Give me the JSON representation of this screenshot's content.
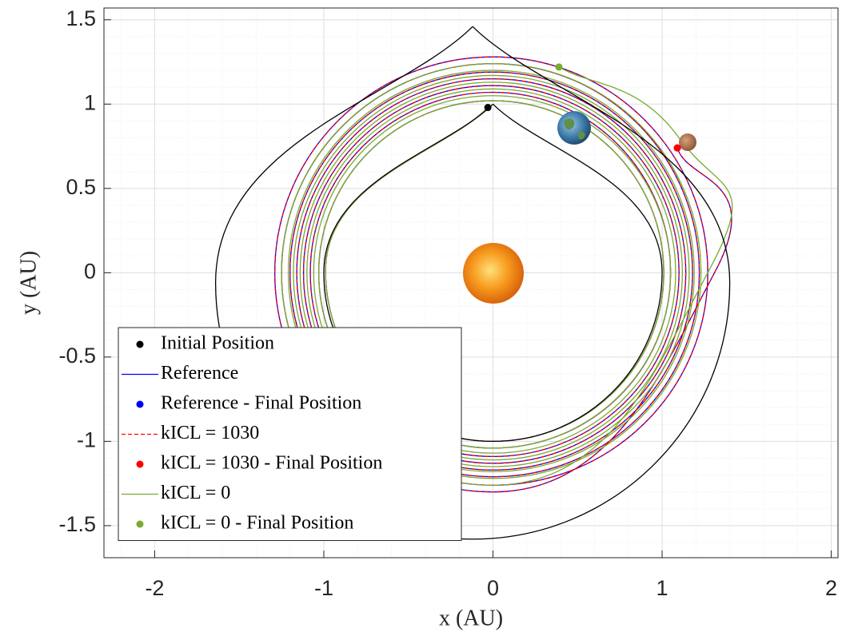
{
  "chart_data": {
    "type": "line",
    "x_label": "x (AU)",
    "y_label": "y (AU)",
    "xlim": [
      -2.3,
      2.04
    ],
    "ylim": [
      -1.69,
      1.57
    ],
    "xticks": [
      -2,
      -1,
      0,
      1,
      2
    ],
    "yticks": [
      -1.5,
      -1,
      -0.5,
      0,
      0.5,
      1,
      1.5
    ],
    "grid": true,
    "minor_grid": true,
    "legend": "lower left",
    "series": [
      {
        "name": "Initial Position",
        "mode": "markers",
        "color": "#000000",
        "x": [
          -0.03
        ],
        "values": [
          0.98
        ]
      },
      {
        "name": "Reference",
        "mode": "line",
        "color": "#0000ff",
        "line_style": "solid",
        "x": [
          -0.03,
          -0.99,
          0,
          1.01,
          0,
          -1.03,
          0,
          1.05,
          0,
          -1.08,
          0,
          1.1,
          0,
          -1.12,
          0,
          1.14,
          0,
          -1.16,
          0,
          1.18,
          0,
          -1.2,
          0,
          1.22,
          0,
          -1.25,
          0,
          1.27,
          0,
          -1.29,
          0,
          1.31,
          1.09
        ],
        "values": [
          0.98,
          0,
          -1.0,
          0,
          1.02,
          0,
          -1.04,
          0,
          1.07,
          0,
          -1.09,
          0,
          1.11,
          0,
          -1.13,
          0,
          1.15,
          0,
          -1.17,
          0,
          1.19,
          0,
          -1.21,
          0,
          1.24,
          0,
          -1.26,
          0,
          1.28,
          0,
          -1.3,
          0,
          0.74
        ]
      },
      {
        "name": "Reference - Final Position",
        "mode": "markers",
        "color": "#0000ff",
        "x": [
          1.09
        ],
        "values": [
          0.74
        ]
      },
      {
        "name": "kICL = 1030",
        "mode": "line",
        "color": "#ff0000",
        "line_style": "dashed",
        "x": [
          -0.03,
          -0.99,
          0,
          1.01,
          0,
          -1.03,
          0,
          1.05,
          0,
          -1.08,
          0,
          1.1,
          0,
          -1.12,
          0,
          1.14,
          0,
          -1.16,
          0,
          1.18,
          0,
          -1.2,
          0,
          1.22,
          0,
          -1.25,
          0,
          1.27,
          0,
          -1.29,
          0,
          1.31,
          1.09
        ],
        "values": [
          0.98,
          0,
          -1.0,
          0,
          1.02,
          0,
          -1.04,
          0,
          1.07,
          0,
          -1.09,
          0,
          1.11,
          0,
          -1.13,
          0,
          1.15,
          0,
          -1.17,
          0,
          1.19,
          0,
          -1.21,
          0,
          1.24,
          0,
          -1.26,
          0,
          1.28,
          0,
          -1.3,
          0,
          0.74
        ]
      },
      {
        "name": "kICL = 1030 - Final Position",
        "mode": "markers",
        "color": "#ff0000",
        "x": [
          1.09
        ],
        "values": [
          0.74
        ]
      },
      {
        "name": "kICL = 0",
        "mode": "line",
        "color": "#77ac30",
        "line_style": "solid",
        "x": [
          -0.03,
          -0.99,
          0,
          1.01,
          0,
          -1.03,
          0,
          1.05,
          0,
          -1.06,
          0,
          1.08,
          0,
          -1.1,
          0,
          1.12,
          0,
          -1.14,
          0,
          1.16,
          0,
          -1.18,
          0,
          1.19,
          0,
          -1.21,
          0,
          1.23,
          0,
          -1.25,
          0,
          1.27,
          1.1,
          0.39
        ],
        "values": [
          0.98,
          0,
          -1.0,
          0,
          1.02,
          0,
          -1.04,
          0,
          1.05,
          0,
          -1.07,
          0,
          1.09,
          0,
          -1.11,
          0,
          1.13,
          0,
          -1.15,
          0,
          1.17,
          0,
          -1.18,
          0,
          1.2,
          0,
          -1.22,
          0,
          1.24,
          0,
          -1.26,
          0,
          0.8,
          1.22
        ]
      },
      {
        "name": "kICL = 0 - Final Position",
        "mode": "markers",
        "color": "#77ac30",
        "x": [
          0.39
        ],
        "values": [
          1.22
        ]
      },
      {
        "mode": "line",
        "color": "#000000",
        "line_style": "solid",
        "x": [
          0,
          -1,
          0,
          1,
          0
        ],
        "values": [
          1,
          0,
          -1,
          0,
          1
        ]
      },
      {
        "mode": "line",
        "color": "#000000",
        "line_style": "solid",
        "x": [
          -0.12,
          -1.64,
          -0.12,
          1.4,
          -0.12
        ],
        "values": [
          1.46,
          -0.06,
          -1.58,
          -0.06,
          1.46
        ]
      }
    ]
  }
}
